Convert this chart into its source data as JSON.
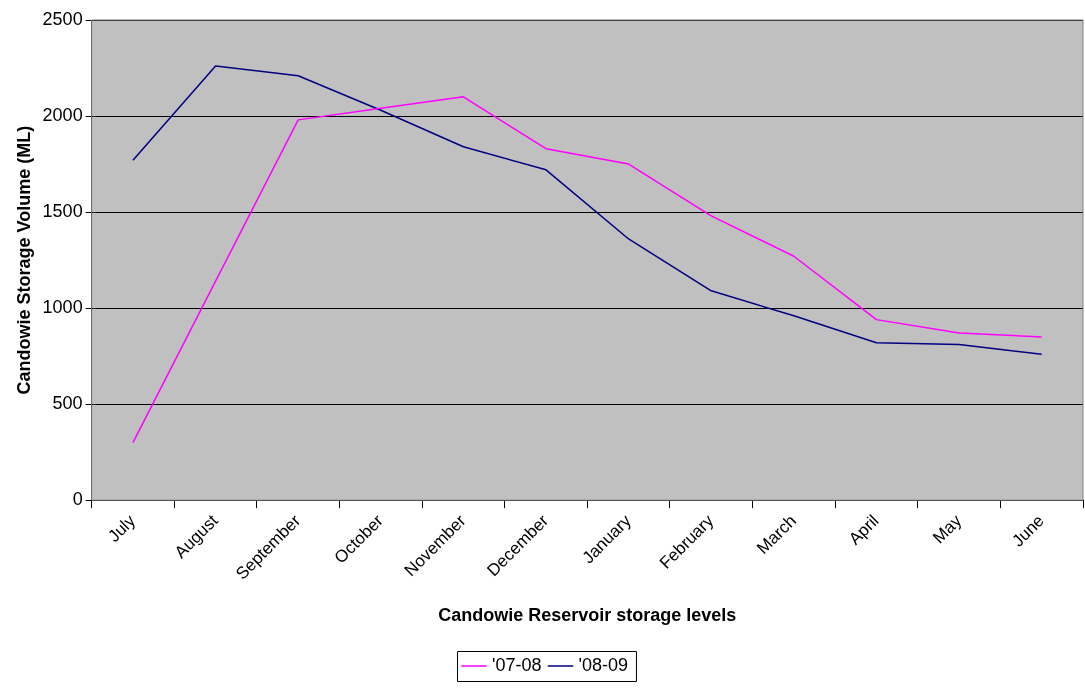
{
  "chart_data": {
    "type": "line",
    "xlabel": "Candowie Reservoir storage levels",
    "ylabel": "Candowie Storage Volume (ML)",
    "categories": [
      "July",
      "August",
      "September",
      "October",
      "November",
      "December",
      "January",
      "February",
      "March",
      "April",
      "May",
      "June"
    ],
    "series": [
      {
        "name": "'07-08",
        "color": "#ff00ff",
        "values": [
          300,
          1140,
          1980,
          2040,
          2100,
          1830,
          1750,
          1480,
          1270,
          940,
          870,
          850
        ]
      },
      {
        "name": "'08-09",
        "color": "#000080",
        "values": [
          1770,
          2260,
          2210,
          2030,
          1840,
          1720,
          1360,
          1090,
          960,
          820,
          810,
          760
        ]
      }
    ],
    "ylim": [
      0,
      2500
    ],
    "yticks": [
      0,
      500,
      1000,
      1500,
      2000,
      2500
    ],
    "grid": "y",
    "legend": "bottom",
    "marker": "none",
    "line_style": "solid"
  }
}
